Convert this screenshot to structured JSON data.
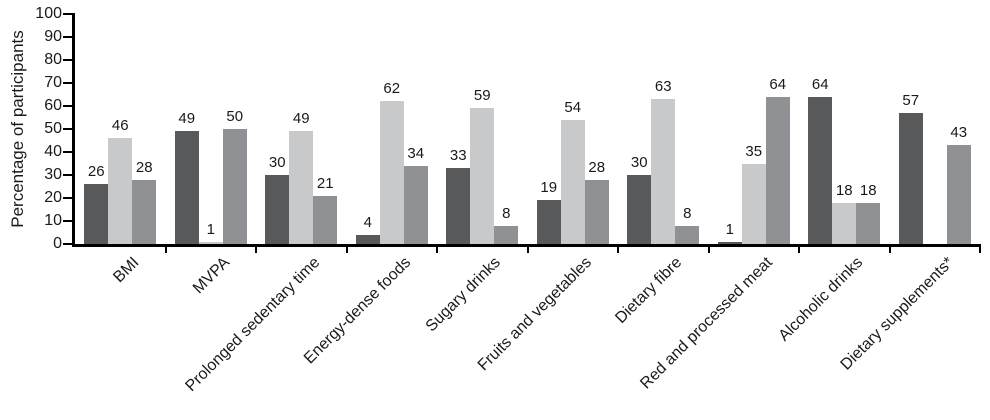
{
  "chart_data": {
    "type": "bar",
    "title": "",
    "ylabel": "Percentage of participants",
    "xlabel": "",
    "ylim": [
      0,
      100
    ],
    "yticks": [
      0,
      10,
      20,
      30,
      40,
      50,
      60,
      70,
      80,
      90,
      100
    ],
    "grid": false,
    "legend_position": "none",
    "bar_value_labels_shown": true,
    "categories": [
      "BMI",
      "MVPA",
      "Prolonged sedentary time",
      "Energy-dense foods",
      "Sugary drinks",
      "Fruits and vegetables",
      "Dietary fibre",
      "Red and processed meat",
      "Alcoholic drinks",
      "Dietary supplements*"
    ],
    "series": [
      {
        "name": "series-1-dark-grey",
        "color": "#58595B",
        "values": [
          26,
          49,
          30,
          4,
          33,
          19,
          30,
          1,
          64,
          57
        ]
      },
      {
        "name": "series-2-light-grey",
        "color": "#C8C9CB",
        "values": [
          46,
          1,
          49,
          62,
          59,
          54,
          63,
          35,
          18,
          null
        ]
      },
      {
        "name": "series-3-medium-grey",
        "color": "#8F9194",
        "values": [
          28,
          50,
          21,
          34,
          8,
          28,
          8,
          64,
          18,
          43
        ]
      }
    ],
    "axis_color": "#000000"
  }
}
